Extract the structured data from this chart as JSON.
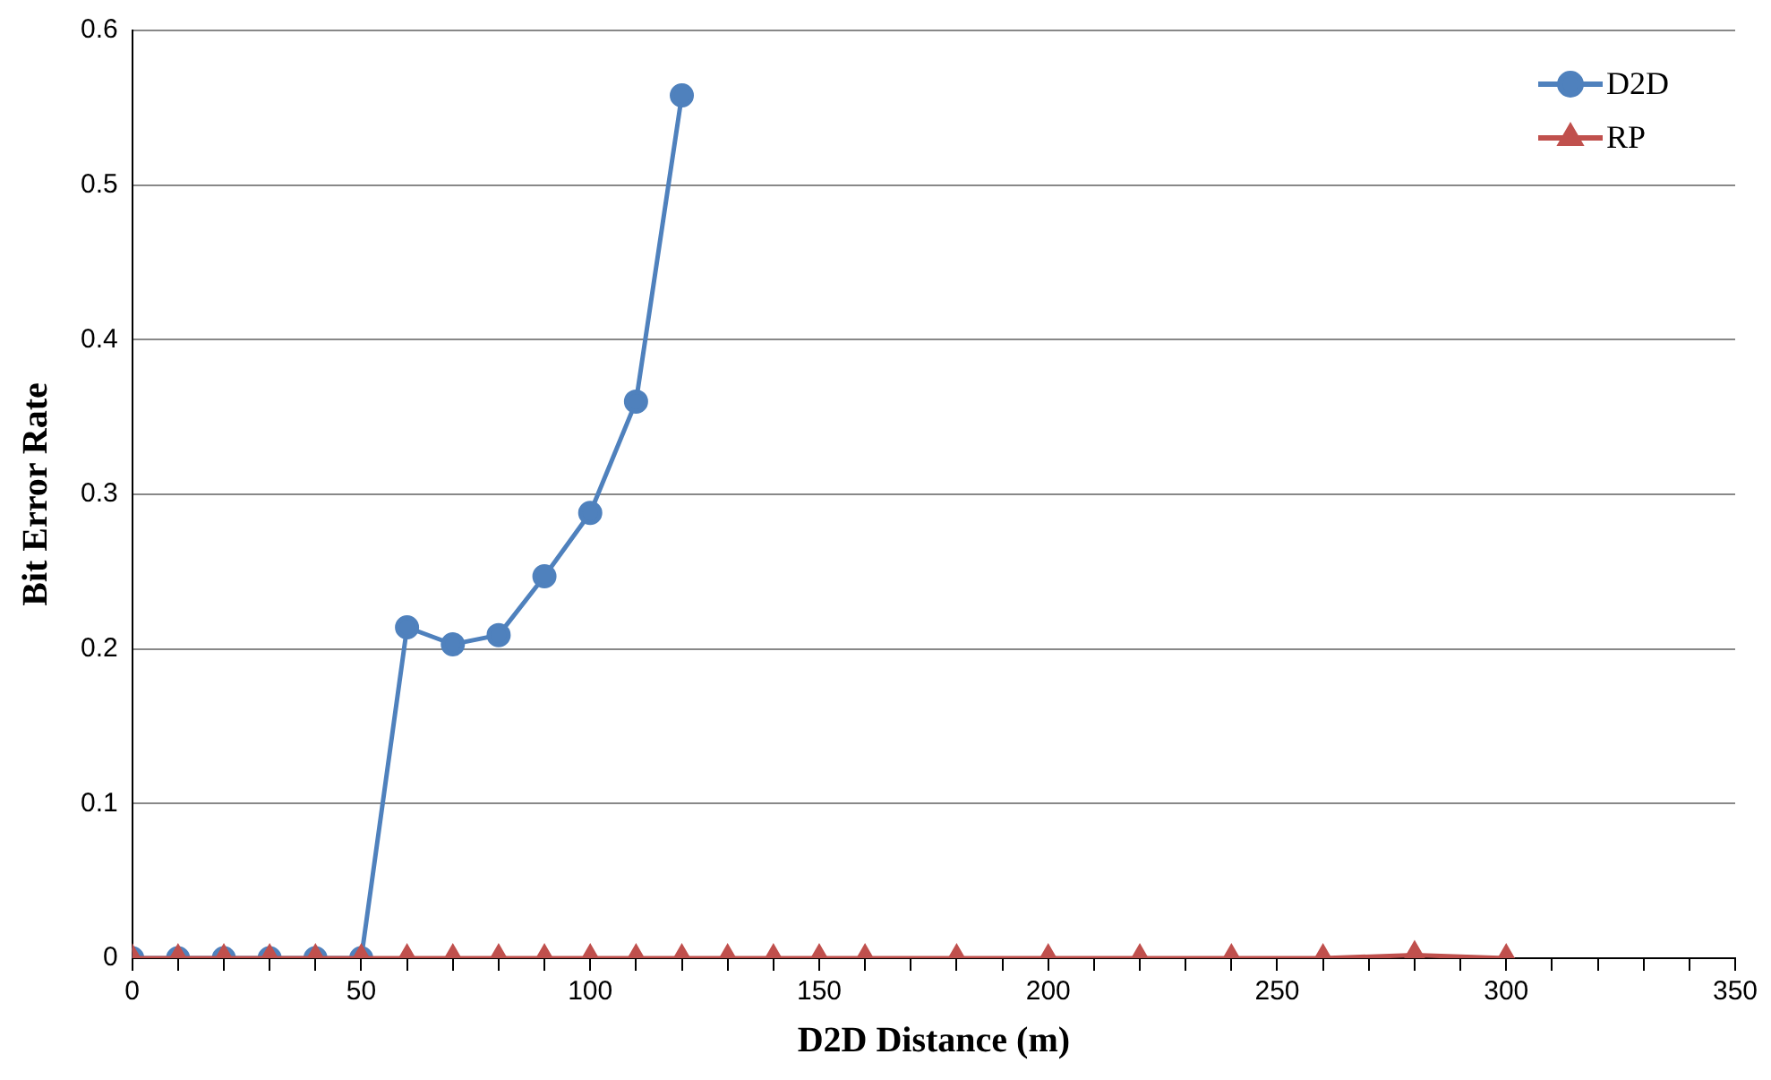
{
  "chart_data": {
    "type": "line",
    "xlabel": "D2D Distance (m)",
    "ylabel": "Bit Error Rate",
    "xlim": [
      0,
      350
    ],
    "xticks": [
      0,
      {
        "value": 10,
        "label": null
      },
      {
        "value": 20,
        "label": null
      },
      {
        "value": 30,
        "label": null
      },
      {
        "value": 40,
        "label": null
      },
      50,
      {
        "value": 60,
        "label": null
      },
      {
        "value": 70,
        "label": null
      },
      {
        "value": 80,
        "label": null
      },
      {
        "value": 90,
        "label": null
      },
      100,
      {
        "value": 110,
        "label": null
      },
      {
        "value": 120,
        "label": null
      },
      {
        "value": 130,
        "label": null
      },
      {
        "value": 140,
        "label": null
      },
      150,
      {
        "value": 160,
        "label": null
      },
      {
        "value": 170,
        "label": null
      },
      {
        "value": 180,
        "label": null
      },
      {
        "value": 190,
        "label": null
      },
      200,
      {
        "value": 210,
        "label": null
      },
      {
        "value": 220,
        "label": null
      },
      {
        "value": 230,
        "label": null
      },
      {
        "value": 240,
        "label": null
      },
      250,
      {
        "value": 260,
        "label": null
      },
      {
        "value": 270,
        "label": null
      },
      {
        "value": 280,
        "label": null
      },
      {
        "value": 290,
        "label": null
      },
      300,
      {
        "value": 310,
        "label": null
      },
      {
        "value": 320,
        "label": null
      },
      {
        "value": 330,
        "label": null
      },
      {
        "value": 340,
        "label": null
      },
      350
    ],
    "ylim": [
      0,
      0.6
    ],
    "yticks": [
      0,
      0.1,
      0.2,
      0.3,
      0.4,
      0.5,
      0.6
    ],
    "grid": "y",
    "legend": "top right",
    "line_style": "solid",
    "series": [
      {
        "name": "D2D",
        "color": "#4f81bd",
        "marker": "circle",
        "x": [
          0,
          10,
          20,
          30,
          40,
          50,
          60,
          70,
          80,
          90,
          100,
          110,
          120
        ],
        "values": [
          0,
          0,
          0,
          0,
          0,
          0,
          0.214,
          0.203,
          0.209,
          0.247,
          0.288,
          0.36,
          0.558
        ]
      },
      {
        "name": "RP",
        "color": "#c0504d",
        "marker": "triangle",
        "x": [
          0,
          10,
          20,
          30,
          40,
          50,
          60,
          70,
          80,
          90,
          100,
          110,
          120,
          130,
          140,
          150,
          160,
          180,
          200,
          220,
          240,
          260,
          280,
          300
        ],
        "values": [
          0,
          0,
          0,
          0,
          0,
          0,
          0,
          0,
          0,
          0,
          0,
          0,
          0,
          0,
          0,
          0,
          0,
          0,
          0,
          0,
          0,
          0,
          0.002,
          0
        ]
      }
    ]
  }
}
